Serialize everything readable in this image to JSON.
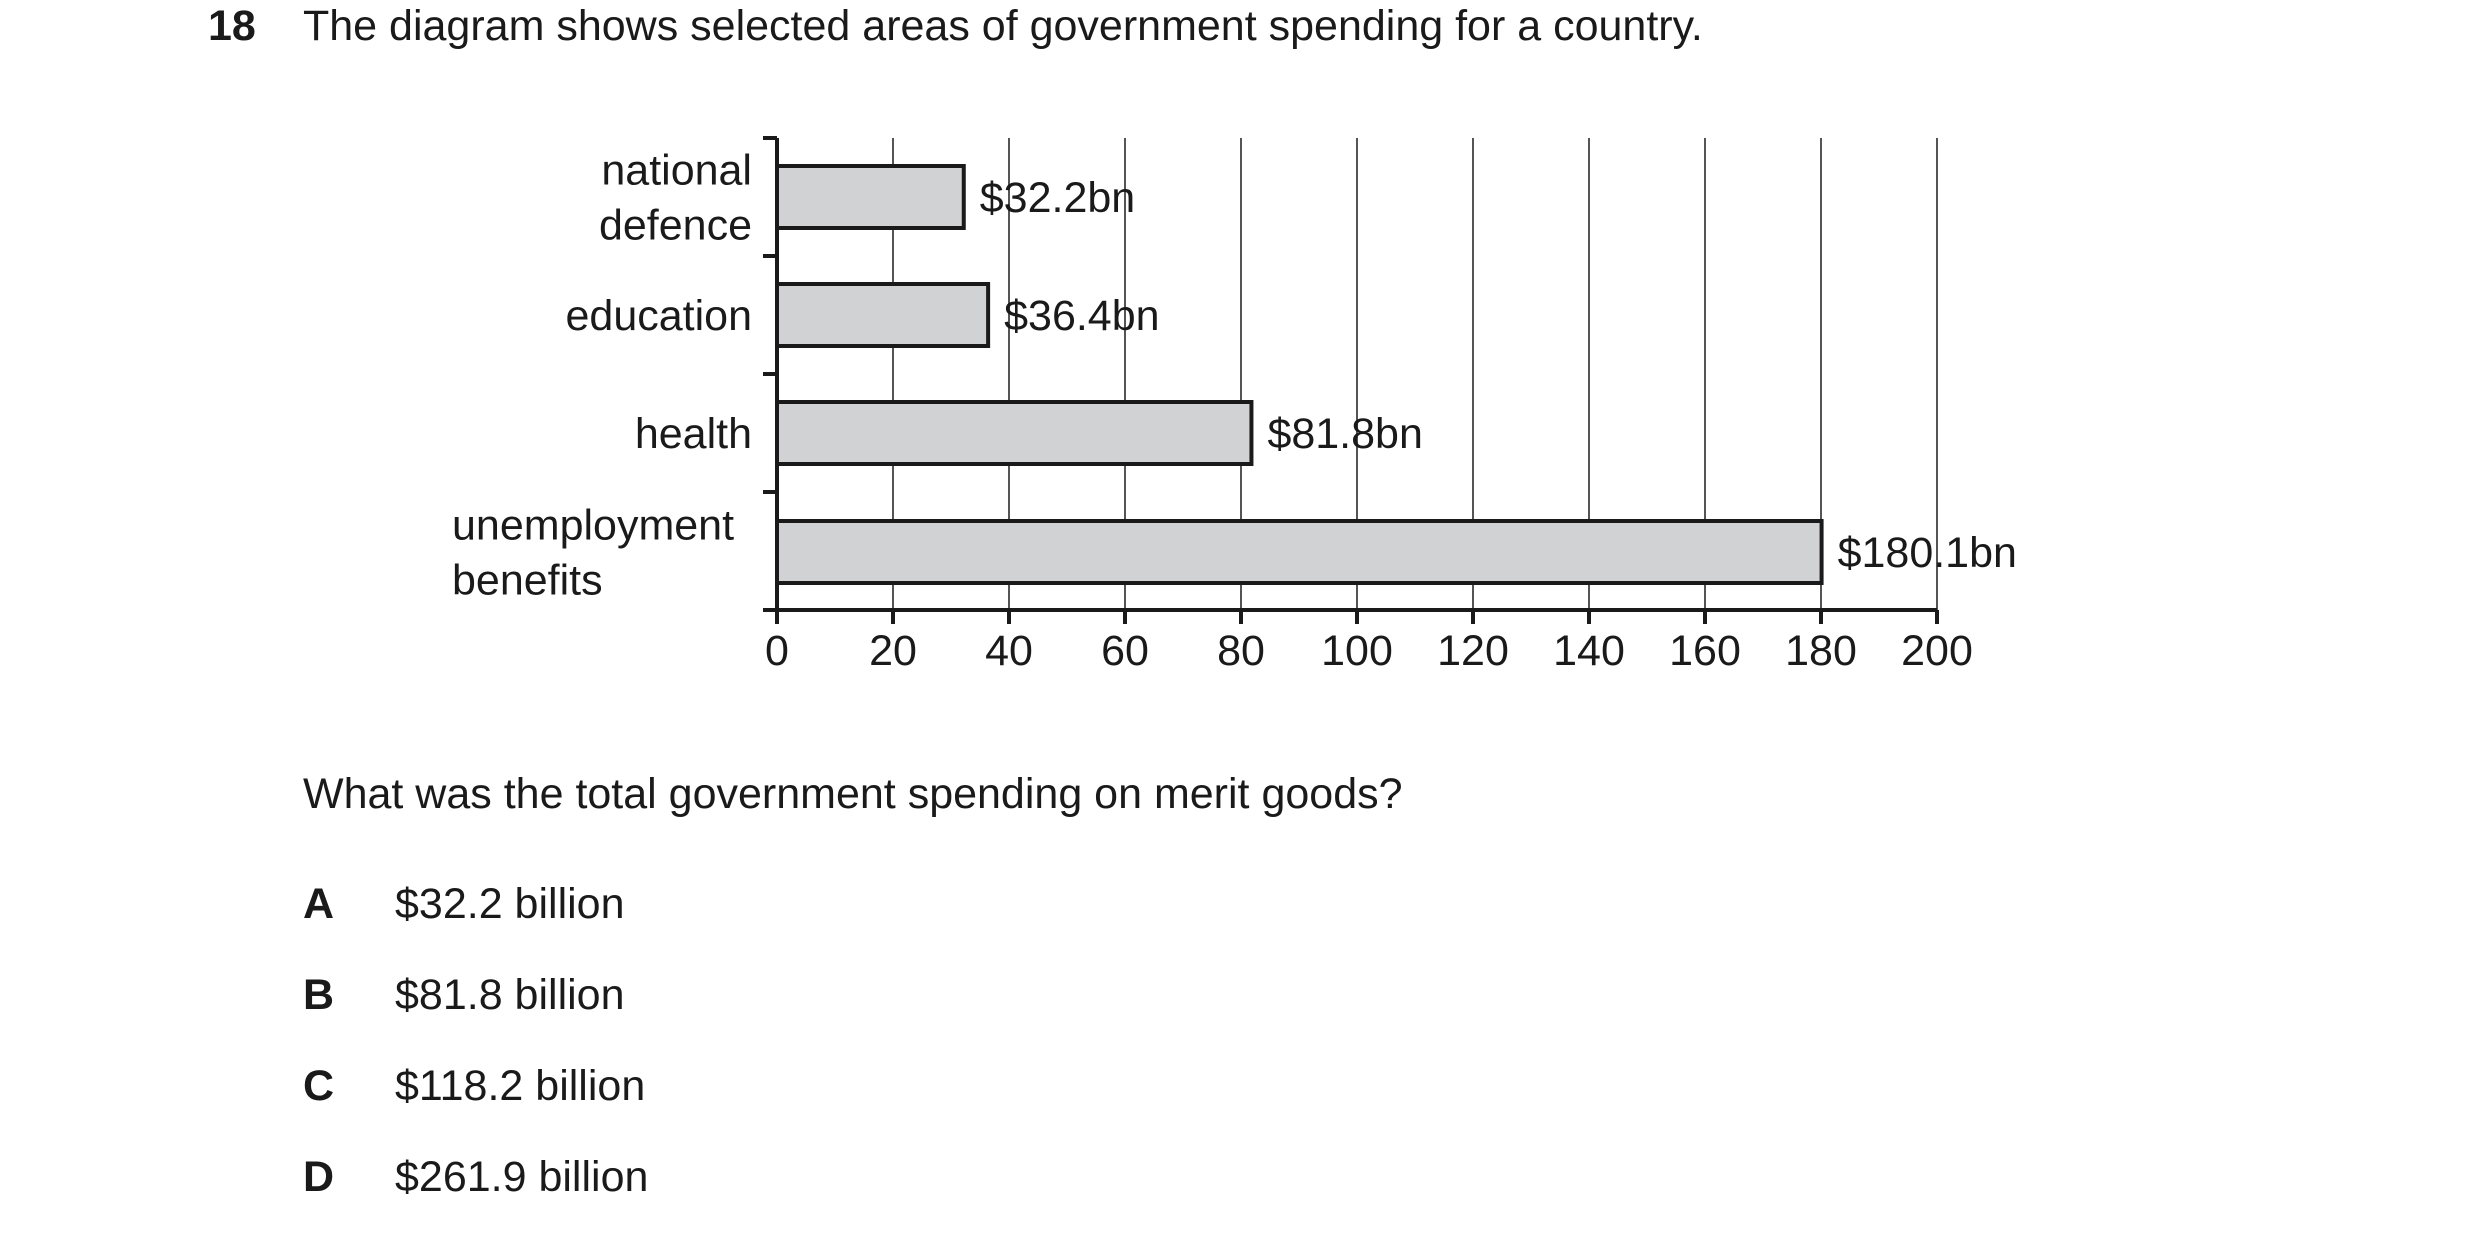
{
  "question": {
    "number": "18",
    "stem": "The diagram shows selected areas of government spending for a country.",
    "prompt": "What was the total government spending on merit goods?",
    "options": [
      {
        "letter": "A",
        "text": "$32.2 billion"
      },
      {
        "letter": "B",
        "text": "$81.8 billion"
      },
      {
        "letter": "C",
        "text": "$118.2 billion"
      },
      {
        "letter": "D",
        "text": "$261.9 billion"
      }
    ]
  },
  "chart_data": {
    "type": "bar",
    "orientation": "horizontal",
    "categories": [
      [
        "national",
        "defence"
      ],
      [
        "education"
      ],
      [
        "health"
      ],
      [
        "unemployment",
        "benefits"
      ]
    ],
    "values": [
      32.2,
      36.4,
      81.8,
      180.1
    ],
    "data_labels": [
      "$32.2bn",
      "$36.4bn",
      "$81.8bn",
      "$180.1bn"
    ],
    "xlim": [
      0,
      200
    ],
    "xticks": [
      0,
      20,
      40,
      60,
      80,
      100,
      120,
      140,
      160,
      180,
      200
    ],
    "grid": true,
    "bar_color": "#d1d2d4",
    "edge_color": "#1a1a1a"
  }
}
